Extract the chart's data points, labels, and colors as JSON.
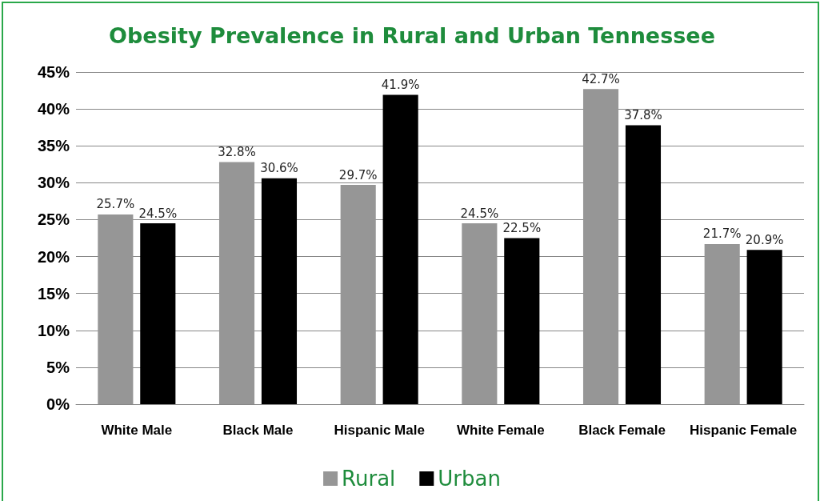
{
  "chart_data": {
    "type": "bar",
    "title": "Obesity Prevalence in Rural and Urban Tennessee",
    "categories": [
      "White Male",
      "Black Male",
      "Hispanic Male",
      "White Female",
      "Black Female",
      "Hispanic Female"
    ],
    "series": [
      {
        "name": "Rural",
        "color": "#969696",
        "values": [
          25.7,
          32.8,
          29.7,
          24.5,
          42.7,
          21.7
        ],
        "value_labels": [
          "25.7%",
          "32.8%",
          "29.7%",
          "24.5%",
          "42.7%",
          "21.7%"
        ]
      },
      {
        "name": "Urban",
        "color": "#000000",
        "values": [
          24.5,
          30.6,
          41.9,
          22.5,
          37.8,
          20.9
        ],
        "value_labels": [
          "24.5%",
          "30.6%",
          "41.9%",
          "22.5%",
          "37.8%",
          "20.9%"
        ]
      }
    ],
    "ylim": [
      0,
      45
    ],
    "yticks": [
      {
        "value": 0,
        "label": "0%"
      },
      {
        "value": 5,
        "label": "5%"
      },
      {
        "value": 10,
        "label": "10%"
      },
      {
        "value": 15,
        "label": "15%"
      },
      {
        "value": 20,
        "label": "20%"
      },
      {
        "value": 25,
        "label": "25%"
      },
      {
        "value": 30,
        "label": "30%"
      },
      {
        "value": 35,
        "label": "35%"
      },
      {
        "value": 40,
        "label": "40%"
      },
      {
        "value": 45,
        "label": "45%"
      }
    ],
    "grid": "y",
    "legend": "bottom"
  }
}
